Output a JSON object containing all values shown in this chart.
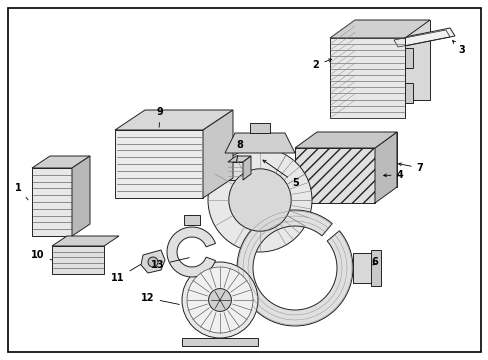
{
  "bg": "#ffffff",
  "lc": "#222222",
  "fc_light": "#e8e8e8",
  "fc_med": "#cccccc",
  "fc_dark": "#aaaaaa",
  "lw_main": 0.7,
  "fig_w": 4.89,
  "fig_h": 3.6,
  "dpi": 100
}
